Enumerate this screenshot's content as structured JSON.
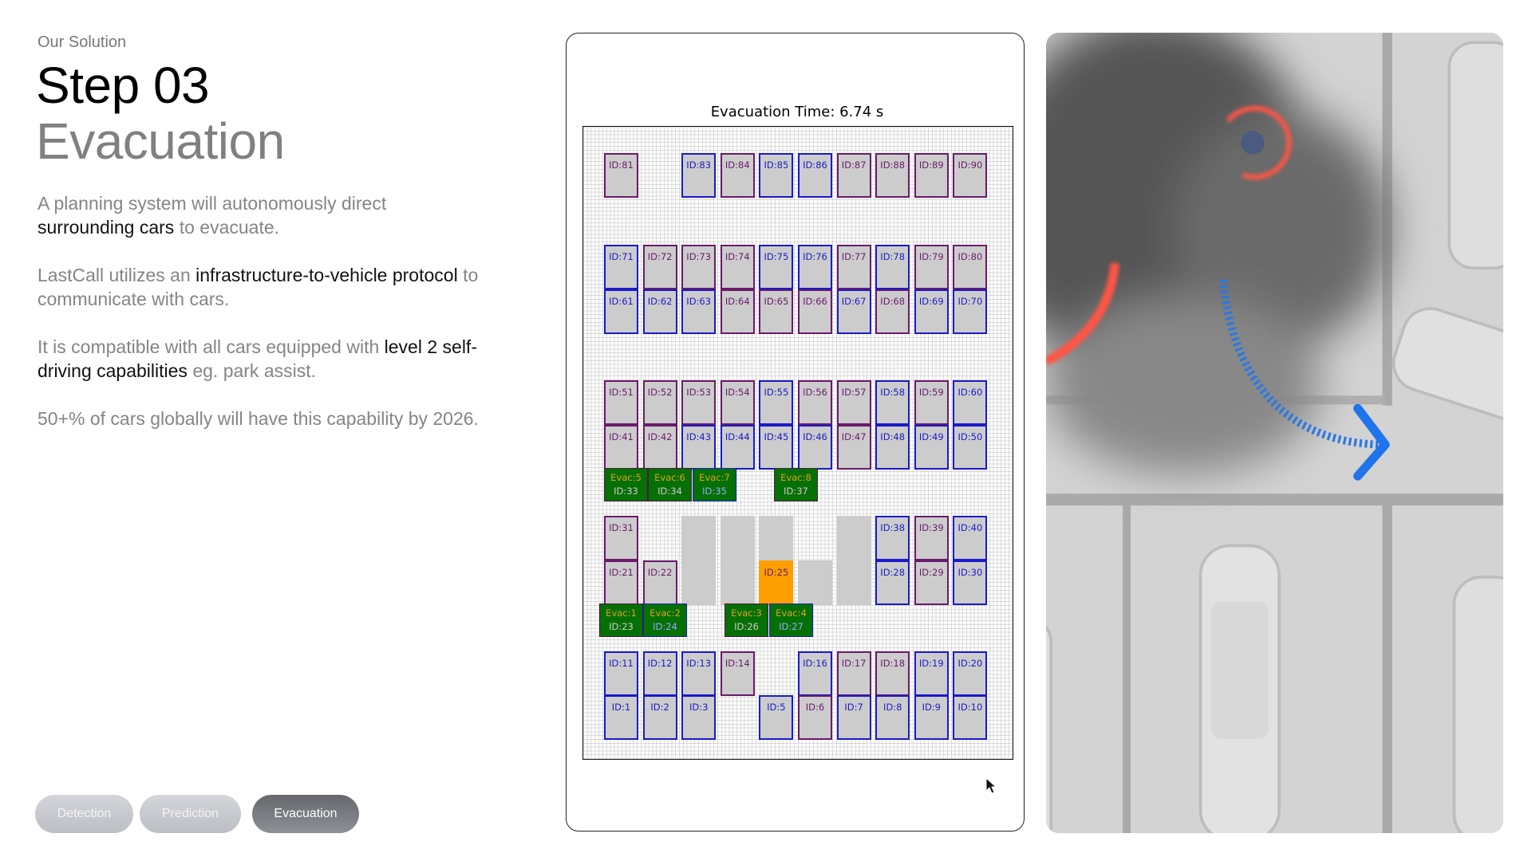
{
  "header": {
    "eyebrow": "Our Solution",
    "step": "Step 03",
    "step_name": "Evacuation"
  },
  "paragraphs": [
    {
      "parts": [
        {
          "text": "A planning system will autonomously direct ",
          "hl": false
        },
        {
          "text": "surrounding cars",
          "hl": true
        },
        {
          "text": " to evacuate.",
          "hl": false
        }
      ]
    },
    {
      "parts": [
        {
          "text": "LastCall utilizes an ",
          "hl": false
        },
        {
          "text": "infrastructure-to-vehicle protocol",
          "hl": true
        },
        {
          "text": " to communicate with cars.",
          "hl": false
        }
      ]
    },
    {
      "parts": [
        {
          "text": "It is compatible with all cars equipped with ",
          "hl": false
        },
        {
          "text": "level 2 self-driving capabilities",
          "hl": true
        },
        {
          "text": " eg. park assist.",
          "hl": false
        }
      ]
    },
    {
      "parts": [
        {
          "text": "50+% of cars globally will have this capability by 2026.",
          "hl": false
        }
      ]
    }
  ],
  "steps_nav": [
    {
      "label": "Detection",
      "active": false
    },
    {
      "label": "Prediction",
      "active": false
    },
    {
      "label": "Evacuation",
      "active": true
    }
  ],
  "simulation": {
    "title": "Evacuation Time: 6.74 s",
    "colors": {
      "blue": "#1a1acc",
      "purple": "#6a1a6a",
      "blocked": "#cccccc",
      "target": "#ff9f00",
      "evac": "#057005",
      "evac_label": "#e0a020"
    },
    "rows": [
      [
        {
          "id": "ID:81",
          "c": "purple"
        },
        null,
        {
          "id": "ID:83",
          "c": "blue"
        },
        {
          "id": "ID:84",
          "c": "purple"
        },
        {
          "id": "ID:85",
          "c": "blue"
        },
        {
          "id": "ID:86",
          "c": "blue"
        },
        {
          "id": "ID:87",
          "c": "purple"
        },
        {
          "id": "ID:88",
          "c": "purple"
        },
        {
          "id": "ID:89",
          "c": "purple"
        },
        {
          "id": "ID:90",
          "c": "purple"
        }
      ],
      [
        {
          "id": "ID:71",
          "c": "blue"
        },
        {
          "id": "ID:72",
          "c": "purple"
        },
        {
          "id": "ID:73",
          "c": "purple"
        },
        {
          "id": "ID:74",
          "c": "purple"
        },
        {
          "id": "ID:75",
          "c": "blue"
        },
        {
          "id": "ID:76",
          "c": "blue"
        },
        {
          "id": "ID:77",
          "c": "purple"
        },
        {
          "id": "ID:78",
          "c": "blue"
        },
        {
          "id": "ID:79",
          "c": "purple"
        },
        {
          "id": "ID:80",
          "c": "purple"
        }
      ],
      [
        {
          "id": "ID:61",
          "c": "blue"
        },
        {
          "id": "ID:62",
          "c": "blue"
        },
        {
          "id": "ID:63",
          "c": "blue"
        },
        {
          "id": "ID:64",
          "c": "purple"
        },
        {
          "id": "ID:65",
          "c": "purple"
        },
        {
          "id": "ID:66",
          "c": "purple"
        },
        {
          "id": "ID:67",
          "c": "blue"
        },
        {
          "id": "ID:68",
          "c": "purple"
        },
        {
          "id": "ID:69",
          "c": "blue"
        },
        {
          "id": "ID:70",
          "c": "blue"
        }
      ],
      [
        {
          "id": "ID:51",
          "c": "purple"
        },
        {
          "id": "ID:52",
          "c": "purple"
        },
        {
          "id": "ID:53",
          "c": "purple"
        },
        {
          "id": "ID:54",
          "c": "purple"
        },
        {
          "id": "ID:55",
          "c": "blue"
        },
        {
          "id": "ID:56",
          "c": "purple"
        },
        {
          "id": "ID:57",
          "c": "purple"
        },
        {
          "id": "ID:58",
          "c": "blue"
        },
        {
          "id": "ID:59",
          "c": "purple"
        },
        {
          "id": "ID:60",
          "c": "blue"
        }
      ],
      [
        {
          "id": "ID:41",
          "c": "purple"
        },
        {
          "id": "ID:42",
          "c": "purple"
        },
        {
          "id": "ID:43",
          "c": "blue"
        },
        {
          "id": "ID:44",
          "c": "blue"
        },
        {
          "id": "ID:45",
          "c": "blue"
        },
        {
          "id": "ID:46",
          "c": "blue"
        },
        {
          "id": "ID:47",
          "c": "purple"
        },
        {
          "id": "ID:48",
          "c": "blue"
        },
        {
          "id": "ID:49",
          "c": "blue"
        },
        {
          "id": "ID:50",
          "c": "blue"
        }
      ],
      [
        {
          "id": "ID:31",
          "c": "purple"
        },
        null,
        {
          "c": "blocked"
        },
        {
          "c": "blocked"
        },
        {
          "c": "blocked"
        },
        null,
        {
          "c": "blocked"
        },
        {
          "id": "ID:38",
          "c": "blue"
        },
        {
          "id": "ID:39",
          "c": "purple"
        },
        {
          "id": "ID:40",
          "c": "blue"
        }
      ],
      [
        {
          "id": "ID:21",
          "c": "purple"
        },
        {
          "id": "ID:22",
          "c": "purple"
        },
        {
          "c": "blocked"
        },
        {
          "c": "blocked"
        },
        {
          "id": "ID:25",
          "c": "target"
        },
        {
          "c": "blocked"
        },
        {
          "c": "blocked"
        },
        {
          "id": "ID:28",
          "c": "blue"
        },
        {
          "id": "ID:29",
          "c": "purple"
        },
        {
          "id": "ID:30",
          "c": "blue"
        }
      ],
      [
        {
          "id": "ID:11",
          "c": "blue"
        },
        {
          "id": "ID:12",
          "c": "blue"
        },
        {
          "id": "ID:13",
          "c": "blue"
        },
        {
          "id": "ID:14",
          "c": "purple"
        },
        null,
        {
          "id": "ID:16",
          "c": "blue"
        },
        {
          "id": "ID:17",
          "c": "purple"
        },
        {
          "id": "ID:18",
          "c": "purple"
        },
        {
          "id": "ID:19",
          "c": "blue"
        },
        {
          "id": "ID:20",
          "c": "blue"
        }
      ],
      [
        {
          "id": "ID:1",
          "c": "blue"
        },
        {
          "id": "ID:2",
          "c": "blue"
        },
        {
          "id": "ID:3",
          "c": "blue"
        },
        null,
        {
          "id": "ID:5",
          "c": "blue"
        },
        {
          "id": "ID:6",
          "c": "purple"
        },
        {
          "id": "ID:7",
          "c": "blue"
        },
        {
          "id": "ID:8",
          "c": "blue"
        },
        {
          "id": "ID:9",
          "c": "blue"
        },
        {
          "id": "ID:10",
          "c": "blue"
        }
      ]
    ],
    "evac_upper": [
      {
        "label": "Evac:5",
        "id": "ID:33",
        "c": "purple"
      },
      {
        "label": "Evac:6",
        "id": "ID:34",
        "c": "purple"
      },
      {
        "label": "Evac:7",
        "id": "ID:35",
        "c": "blue"
      },
      {
        "label": "Evac:8",
        "id": "ID:37",
        "c": "purple"
      }
    ],
    "evac_lower": [
      {
        "label": "Evac:1",
        "id": "ID:23",
        "c": "purple"
      },
      {
        "label": "Evac:2",
        "id": "ID:24",
        "c": "blue"
      },
      {
        "label": "Evac:3",
        "id": "ID:26",
        "c": "purple"
      },
      {
        "label": "Evac:4",
        "id": "ID:27",
        "c": "blue"
      }
    ]
  }
}
